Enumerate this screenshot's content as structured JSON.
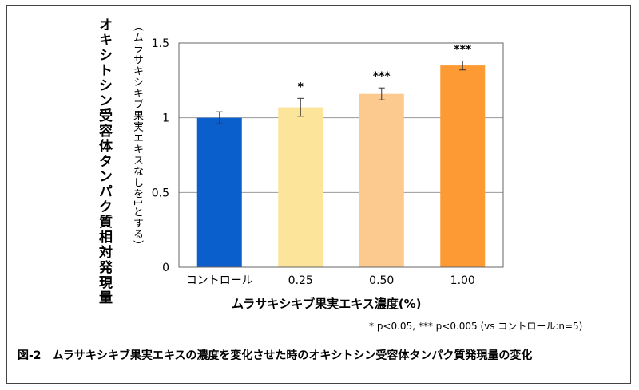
{
  "figure": {
    "y_label": "オキシトシン受容体タンパク質相対発現量",
    "y_sublabel": "（ムラサキシキブ果実エキスなしを1とする）",
    "x_label": "ムラサキシキブ果実エキス濃度(%)",
    "footnote": "* p<0.05, *** p<0.005 (vs コントロール:n=5)",
    "caption": "図-2　ムラサキシキブ果実エキスの濃度を変化させた時のオキシトシン受容体タンパク質発現量の変化"
  },
  "chart_data": {
    "type": "bar",
    "categories": [
      "コントロール",
      "0.25",
      "0.50",
      "1.00"
    ],
    "values": [
      1.0,
      1.07,
      1.16,
      1.35
    ],
    "errors": [
      0.04,
      0.06,
      0.04,
      0.03
    ],
    "significance": [
      "",
      "*",
      "***",
      "***"
    ],
    "colors": [
      "#0a5fcc",
      "#fce59a",
      "#fcc98f",
      "#fd9a33"
    ],
    "ylim": [
      0,
      1.5
    ],
    "yticks": [
      0,
      0.5,
      1,
      1.5
    ],
    "ytick_labels": [
      "0",
      "0.5",
      "1",
      "1.5"
    ],
    "grid": true,
    "legend": "none"
  }
}
